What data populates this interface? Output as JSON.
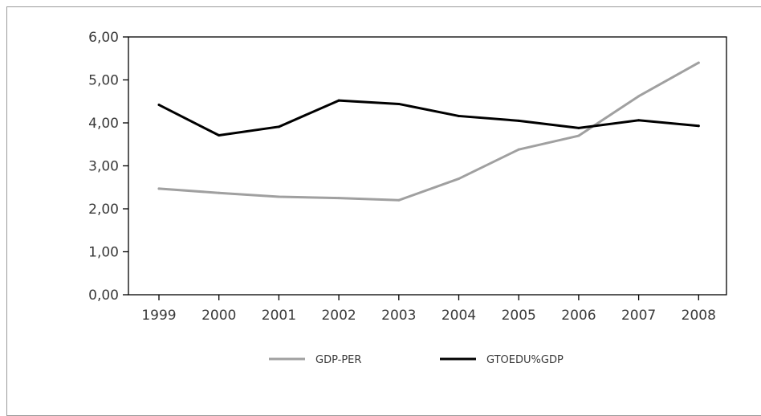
{
  "chart_data": {
    "type": "line",
    "categories": [
      "1999",
      "2000",
      "2001",
      "2002",
      "2003",
      "2004",
      "2005",
      "2006",
      "2007",
      "2008"
    ],
    "ylim": [
      0,
      6
    ],
    "yticks": [
      "0,00",
      "1,00",
      "2,00",
      "3,00",
      "4,00",
      "5,00",
      "6,00"
    ],
    "grid": false,
    "legend_position": "bottom",
    "series": [
      {
        "name": "GDP-PER",
        "color": "#a0a0a0",
        "values": [
          2.47,
          2.37,
          2.28,
          2.25,
          2.2,
          2.7,
          3.38,
          3.7,
          4.62,
          5.4
        ]
      },
      {
        "name": "GTOEDU%GDP",
        "color": "#000000",
        "values": [
          4.42,
          3.71,
          3.91,
          4.52,
          4.44,
          4.16,
          4.05,
          3.88,
          4.06,
          3.93
        ]
      }
    ]
  }
}
